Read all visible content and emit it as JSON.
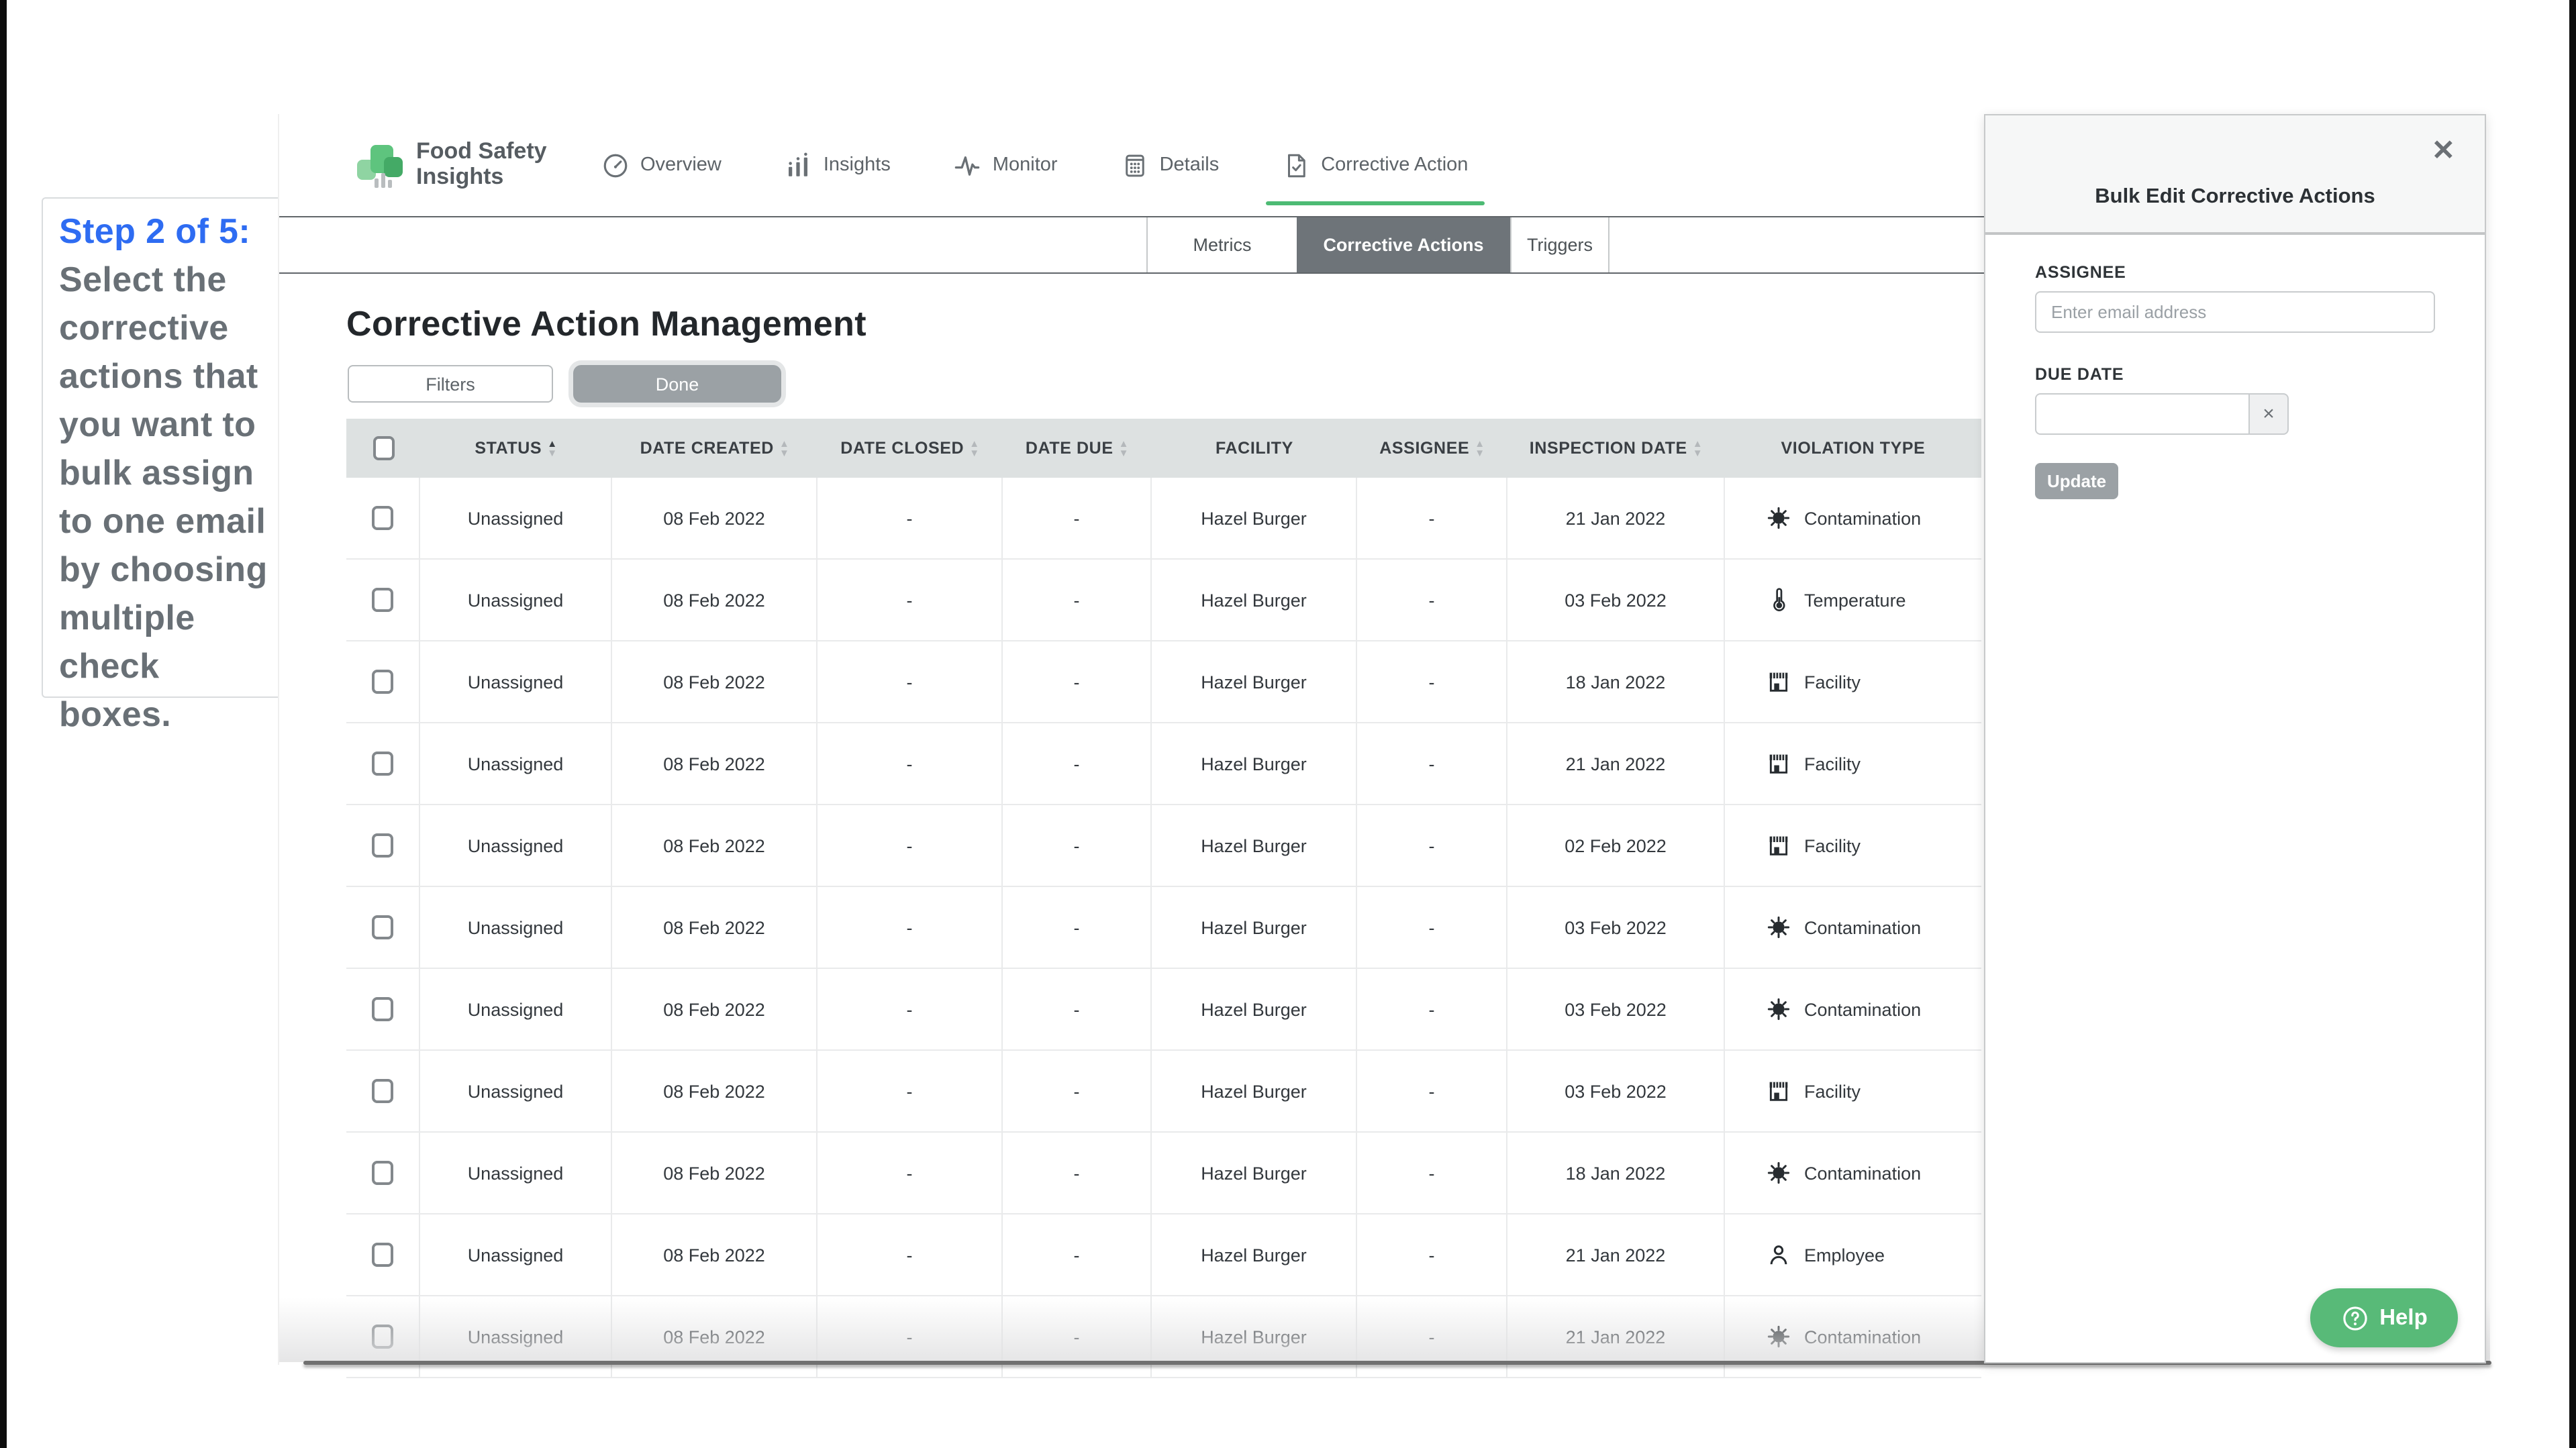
{
  "colors": {
    "accent_green": "#4dbb74",
    "help_green": "#58ba78",
    "annotation_blue": "#2e6cf2",
    "arrow_green": "#38c28f",
    "active_tab_gray": "#6e7479"
  },
  "annotation": {
    "step_label": "Step 2 of 5:",
    "step_text": "Select the corrective actions that you want to bulk assign to one email by choosing multiple check boxes."
  },
  "brand": {
    "line1": "Food Safety",
    "line2": "Insights"
  },
  "nav": {
    "items": [
      {
        "label": "Overview",
        "icon": "gauge-icon",
        "active": false
      },
      {
        "label": "Insights",
        "icon": "bar-chart-icon",
        "active": false
      },
      {
        "label": "Monitor",
        "icon": "activity-icon",
        "active": false
      },
      {
        "label": "Details",
        "icon": "grid-icon",
        "active": false
      },
      {
        "label": "Corrective Action",
        "icon": "doc-check-icon",
        "active": true
      }
    ]
  },
  "subtabs": {
    "items": [
      {
        "label": "Metrics",
        "active": false
      },
      {
        "label": "Corrective Actions",
        "active": true
      },
      {
        "label": "Triggers",
        "active": false
      }
    ]
  },
  "page": {
    "title": "Corrective Action Management",
    "filters_label": "Filters",
    "done_label": "Done"
  },
  "table": {
    "columns": [
      {
        "label": "",
        "type": "checkbox",
        "sortable": false
      },
      {
        "label": "STATUS",
        "sortable": true,
        "sorted": "asc"
      },
      {
        "label": "DATE CREATED",
        "sortable": true
      },
      {
        "label": "DATE CLOSED",
        "sortable": true
      },
      {
        "label": "DATE DUE",
        "sortable": true
      },
      {
        "label": "FACILITY",
        "sortable": false
      },
      {
        "label": "ASSIGNEE",
        "sortable": true
      },
      {
        "label": "INSPECTION DATE",
        "sortable": true
      },
      {
        "label": "VIOLATION TYPE",
        "sortable": false
      }
    ],
    "rows": [
      {
        "status": "Unassigned",
        "date_created": "08 Feb 2022",
        "date_closed": "-",
        "date_due": "-",
        "facility": "Hazel Burger",
        "assignee": "-",
        "inspection_date": "21 Jan 2022",
        "violation_type": "Contamination",
        "violation_icon": "virus-icon"
      },
      {
        "status": "Unassigned",
        "date_created": "08 Feb 2022",
        "date_closed": "-",
        "date_due": "-",
        "facility": "Hazel Burger",
        "assignee": "-",
        "inspection_date": "03 Feb 2022",
        "violation_type": "Temperature",
        "violation_icon": "thermometer-icon"
      },
      {
        "status": "Unassigned",
        "date_created": "08 Feb 2022",
        "date_closed": "-",
        "date_due": "-",
        "facility": "Hazel Burger",
        "assignee": "-",
        "inspection_date": "18 Jan 2022",
        "violation_type": "Facility",
        "violation_icon": "storefront-icon"
      },
      {
        "status": "Unassigned",
        "date_created": "08 Feb 2022",
        "date_closed": "-",
        "date_due": "-",
        "facility": "Hazel Burger",
        "assignee": "-",
        "inspection_date": "21 Jan 2022",
        "violation_type": "Facility",
        "violation_icon": "storefront-icon"
      },
      {
        "status": "Unassigned",
        "date_created": "08 Feb 2022",
        "date_closed": "-",
        "date_due": "-",
        "facility": "Hazel Burger",
        "assignee": "-",
        "inspection_date": "02 Feb 2022",
        "violation_type": "Facility",
        "violation_icon": "storefront-icon"
      },
      {
        "status": "Unassigned",
        "date_created": "08 Feb 2022",
        "date_closed": "-",
        "date_due": "-",
        "facility": "Hazel Burger",
        "assignee": "-",
        "inspection_date": "03 Feb 2022",
        "violation_type": "Contamination",
        "violation_icon": "virus-icon"
      },
      {
        "status": "Unassigned",
        "date_created": "08 Feb 2022",
        "date_closed": "-",
        "date_due": "-",
        "facility": "Hazel Burger",
        "assignee": "-",
        "inspection_date": "03 Feb 2022",
        "violation_type": "Contamination",
        "violation_icon": "virus-icon"
      },
      {
        "status": "Unassigned",
        "date_created": "08 Feb 2022",
        "date_closed": "-",
        "date_due": "-",
        "facility": "Hazel Burger",
        "assignee": "-",
        "inspection_date": "03 Feb 2022",
        "violation_type": "Facility",
        "violation_icon": "storefront-icon"
      },
      {
        "status": "Unassigned",
        "date_created": "08 Feb 2022",
        "date_closed": "-",
        "date_due": "-",
        "facility": "Hazel Burger",
        "assignee": "-",
        "inspection_date": "18 Jan 2022",
        "violation_type": "Contamination",
        "violation_icon": "virus-icon"
      },
      {
        "status": "Unassigned",
        "date_created": "08 Feb 2022",
        "date_closed": "-",
        "date_due": "-",
        "facility": "Hazel Burger",
        "assignee": "-",
        "inspection_date": "21 Jan 2022",
        "violation_type": "Employee",
        "violation_icon": "person-icon"
      },
      {
        "status": "Unassigned",
        "date_created": "08 Feb 2022",
        "date_closed": "-",
        "date_due": "-",
        "facility": "Hazel Burger",
        "assignee": "-",
        "inspection_date": "21 Jan 2022",
        "violation_type": "Contamination",
        "violation_icon": "virus-icon"
      }
    ]
  },
  "panel": {
    "title": "Bulk Edit Corrective Actions",
    "assignee_label": "ASSIGNEE",
    "assignee_placeholder": "Enter email address",
    "due_date_label": "DUE DATE",
    "due_date_value": "",
    "update_label": "Update"
  },
  "help": {
    "label": "Help"
  }
}
